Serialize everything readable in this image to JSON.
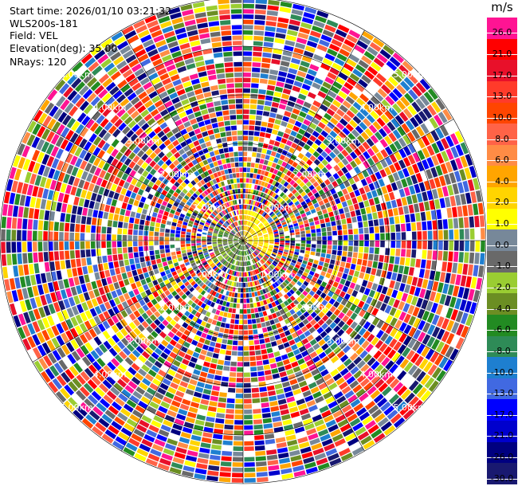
{
  "header": {
    "start_time": "Start time: 2026/01/10 03:21:32",
    "station": "WLS200s-181",
    "field": "Field: VEL",
    "elevation": "Elevation(deg): 35.00",
    "nrays": "NRays: 120"
  },
  "chart_data": {
    "type": "heatmap",
    "projection": "polar-ppi",
    "field": "VEL",
    "elevation_deg": 35.0,
    "n_rays": 120,
    "max_range_km": 5.0,
    "range_rings_km": [
      1,
      2,
      3,
      4,
      5
    ],
    "range_ring_labels": [
      "1.00km",
      "2.00km",
      "3.00km",
      "4.00km",
      "5.00km"
    ],
    "colorbar": {
      "unit": "m/s",
      "tick_labels": [
        "26.0",
        "21.0",
        "17.0",
        "13.0",
        "10.0",
        "8.0",
        "6.0",
        "4.0",
        "2.0",
        "1.0",
        "0.0",
        "-1.0",
        "-2.0",
        "-4.0",
        "-6.0",
        "-8.0",
        "-10.0",
        "-13.0",
        "-17.0",
        "-21.0",
        "-26.0",
        "-30.0"
      ],
      "colors": [
        "#ff1493",
        "#ff0000",
        "#e8102a",
        "#ff3b2a",
        "#ff4500",
        "#ff6347",
        "#ff8c45",
        "#ffa500",
        "#ffd400",
        "#ffff00",
        "#778899",
        "#696969",
        "#9acd32",
        "#6b8e23",
        "#228b22",
        "#2e8b57",
        "#1e7fd0",
        "#4169e1",
        "#0000ff",
        "#0000cd",
        "#000080",
        "#191970"
      ]
    }
  }
}
